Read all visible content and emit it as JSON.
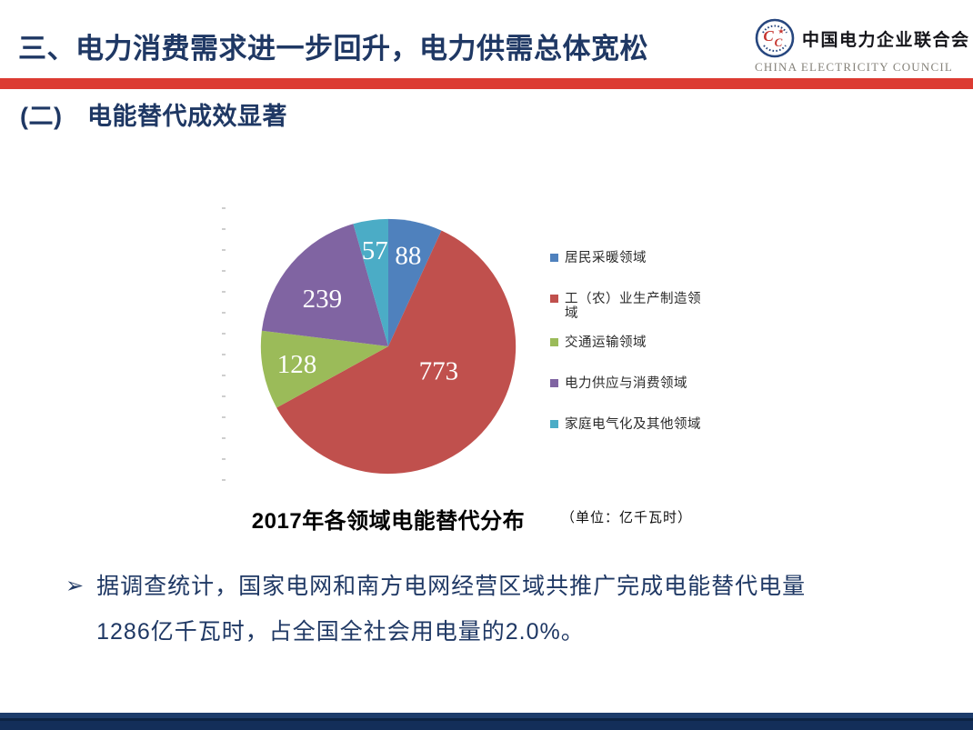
{
  "header": {
    "title": "三、电力消费需求进一步回升，电力供需总体宽松",
    "logo": {
      "org_name_zh": "中国电力企业联合会",
      "org_name_en": "CHINA ELECTRICITY COUNCIL",
      "monogram": "CC"
    }
  },
  "section": {
    "heading": "(二)　电能替代成效显著"
  },
  "chart_data": {
    "type": "pie",
    "title": "2017年各领域电能替代分布",
    "unit_note": "（单位：亿千瓦时）",
    "total": 1285,
    "start_angle_deg": 0,
    "direction": "clockwise",
    "legend_position": "right",
    "series": [
      {
        "label": "居民采暖领域",
        "value": 88,
        "color": "#4F81BD"
      },
      {
        "label": "工（农）业生产制造领域",
        "value": 773,
        "color": "#C0504D"
      },
      {
        "label": "交通运输领域",
        "value": 128,
        "color": "#9BBB59"
      },
      {
        "label": "电力供应与消费领域",
        "value": 239,
        "color": "#8064A2"
      },
      {
        "label": "家庭电气化及其他领域",
        "value": 57,
        "color": "#4BACC6"
      }
    ]
  },
  "body": {
    "bullet_marker": "➢",
    "paragraph": "据调查统计，国家电网和南方电网经营区域共推广完成电能替代电量1286亿千瓦时，占全国全社会用电量的2.0%。"
  },
  "colors": {
    "title_navy": "#1F3864",
    "accent_red": "#DC3B32",
    "footer_navy": "#132E59",
    "logo_ring_blue": "#27477F",
    "logo_monogram_red": "#C5342E"
  }
}
